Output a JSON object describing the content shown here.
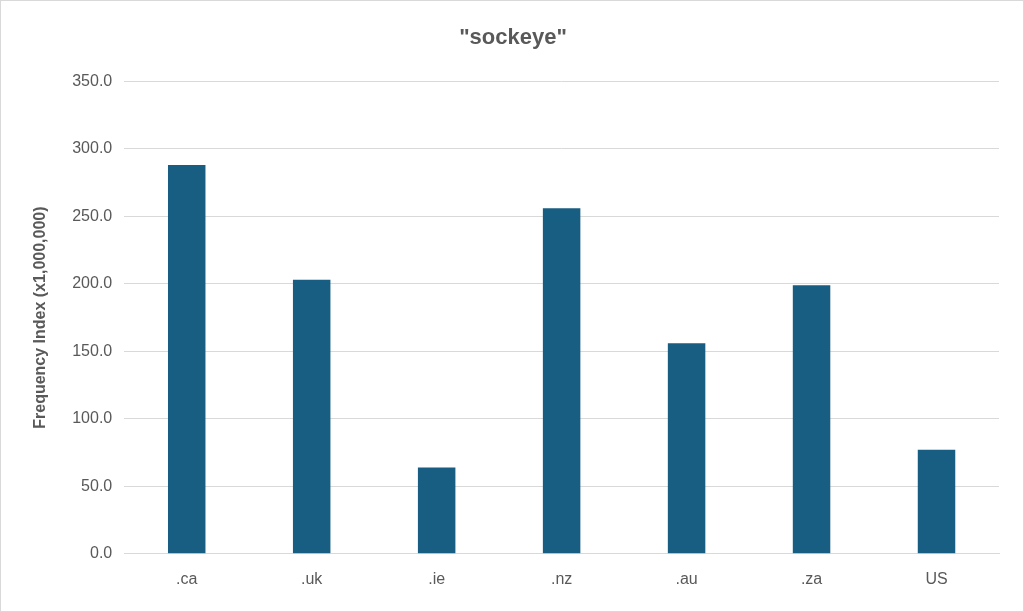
{
  "chart_data": {
    "type": "bar",
    "title": "\"sockeye\"",
    "y_label": "Frequency Index (x1,000,000)",
    "categories": [
      ".ca",
      ".uk",
      ".ie",
      ".nz",
      ".au",
      ".za",
      "US"
    ],
    "values": [
      288,
      203,
      64,
      256,
      156,
      199,
      77
    ],
    "color": "#175e82",
    "ylim": [
      0,
      350
    ],
    "yticks": [
      {
        "value": 0,
        "label": "0.0"
      },
      {
        "value": 50,
        "label": "50.0"
      },
      {
        "value": 100,
        "label": "100.0"
      },
      {
        "value": 150,
        "label": "150.0"
      },
      {
        "value": 200,
        "label": "200.0"
      },
      {
        "value": 250,
        "label": "250.0"
      },
      {
        "value": 300,
        "label": "300.0"
      },
      {
        "value": 350,
        "label": "350.0"
      }
    ],
    "grid": true
  }
}
